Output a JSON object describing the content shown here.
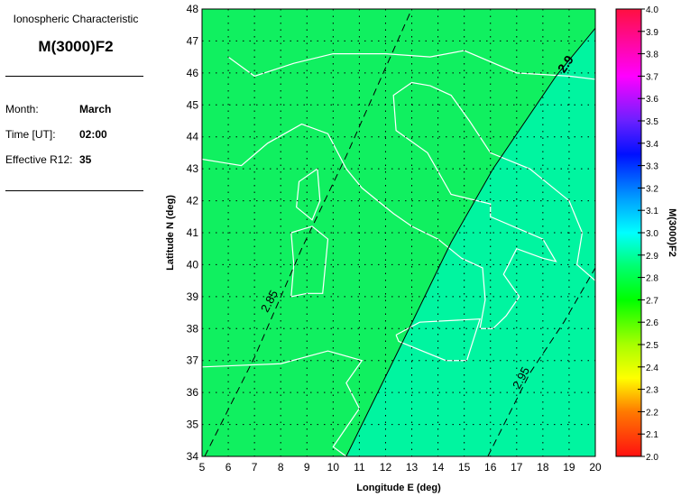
{
  "panel": {
    "heading": "Ionospheric Characteristic",
    "parameter": "M(3000)F2",
    "fields": [
      {
        "label": "Month:",
        "value": "March"
      },
      {
        "label": "Time [UT]:",
        "value": "02:00"
      },
      {
        "label": "Effective R12:",
        "value": "35"
      }
    ]
  },
  "chart_data": {
    "type": "heatmap",
    "xlabel": "Longitude E (deg)",
    "ylabel": "Latitude N (deg)",
    "xlim": [
      5,
      20
    ],
    "ylim": [
      34,
      48
    ],
    "xticks": [
      "5",
      "6",
      "7",
      "8",
      "9",
      "10",
      "11",
      "12",
      "13",
      "14",
      "15",
      "16",
      "17",
      "18",
      "19",
      "20"
    ],
    "yticks": [
      "34",
      "35",
      "36",
      "37",
      "38",
      "39",
      "40",
      "41",
      "42",
      "43",
      "44",
      "45",
      "46",
      "47",
      "48"
    ],
    "grid": true,
    "contours": [
      {
        "level": "2.85",
        "style": "dashed",
        "points": [
          [
            5.1,
            34
          ],
          [
            7.0,
            37.1
          ],
          [
            8.8,
            40.5
          ],
          [
            10.5,
            43.4
          ],
          [
            13.0,
            48
          ]
        ]
      },
      {
        "level": "2.9",
        "style": "solid",
        "points": [
          [
            10.5,
            34
          ],
          [
            12.6,
            37.5
          ],
          [
            14.5,
            40.7
          ],
          [
            16.1,
            43.0
          ],
          [
            18.5,
            45.9
          ],
          [
            20,
            47.4
          ]
        ]
      },
      {
        "level": "2.95",
        "style": "dashed",
        "points": [
          [
            15.9,
            34
          ],
          [
            17.5,
            36.6
          ],
          [
            18.8,
            38.2
          ],
          [
            20,
            39.9
          ]
        ]
      }
    ],
    "region_colors": {
      "below_2.9": "#10f060",
      "above_2.9": "#00f5a0"
    },
    "colorbar": {
      "label": "M(3000)F2",
      "range": [
        2.0,
        4.0
      ],
      "ticks": [
        "2.0",
        "2.1",
        "2.2",
        "2.3",
        "2.4",
        "2.5",
        "2.6",
        "2.7",
        "2.8",
        "2.9",
        "3.0",
        "3.1",
        "3.2",
        "3.3",
        "3.4",
        "3.5",
        "3.6",
        "3.7",
        "3.8",
        "3.9",
        "4.0"
      ],
      "stops": [
        {
          "v": 2.0,
          "c": "#ff1010"
        },
        {
          "v": 2.2,
          "c": "#ff7a00"
        },
        {
          "v": 2.35,
          "c": "#ffff00"
        },
        {
          "v": 2.5,
          "c": "#a8ff00"
        },
        {
          "v": 2.7,
          "c": "#00ff00"
        },
        {
          "v": 2.85,
          "c": "#00ff70"
        },
        {
          "v": 3.0,
          "c": "#00ffff"
        },
        {
          "v": 3.15,
          "c": "#00a0ff"
        },
        {
          "v": 3.35,
          "c": "#0010ff"
        },
        {
          "v": 3.5,
          "c": "#6a20ff"
        },
        {
          "v": 3.7,
          "c": "#ff00ff"
        },
        {
          "v": 4.0,
          "c": "#ff1040"
        }
      ]
    }
  }
}
